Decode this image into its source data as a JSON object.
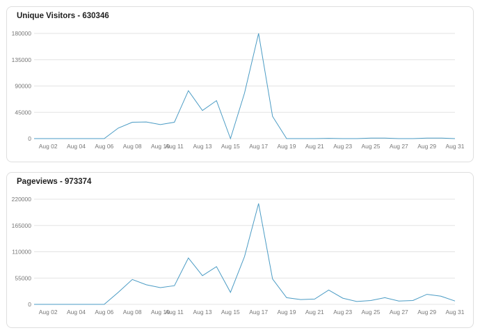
{
  "colors": {
    "line": "#4a9bc4",
    "grid": "#e3e3e3"
  },
  "chart_data": [
    {
      "type": "line",
      "title": "Unique Visitors - 630346",
      "x": [
        "Aug 01",
        "Aug 02",
        "Aug 03",
        "Aug 04",
        "Aug 05",
        "Aug 06",
        "Aug 07",
        "Aug 08",
        "Aug 09",
        "Aug 10",
        "Aug 11",
        "Aug 12",
        "Aug 13",
        "Aug 14",
        "Aug 15",
        "Aug 16",
        "Aug 17",
        "Aug 18",
        "Aug 19",
        "Aug 20",
        "Aug 21",
        "Aug 22",
        "Aug 23",
        "Aug 24",
        "Aug 25",
        "Aug 26",
        "Aug 27",
        "Aug 28",
        "Aug 29",
        "Aug 30",
        "Aug 31"
      ],
      "x_tick_labels": [
        "Aug 02",
        "Aug 04",
        "Aug 06",
        "Aug 08",
        "Aug 10",
        "Aug 11",
        "Aug 13",
        "Aug 15",
        "Aug 17",
        "Aug 19",
        "Aug 21",
        "Aug 23",
        "Aug 25",
        "Aug 27",
        "Aug 29",
        "Aug 31"
      ],
      "y_ticks": [
        0,
        45000,
        90000,
        135000,
        180000
      ],
      "ylim": [
        0,
        180000
      ],
      "grid": true,
      "series": [
        {
          "values": [
            0,
            0,
            0,
            0,
            0,
            0,
            18000,
            28000,
            28500,
            24000,
            28000,
            82000,
            48000,
            65000,
            0,
            78000,
            180000,
            38000,
            0,
            0,
            0,
            500,
            0,
            0,
            1000,
            1000,
            0,
            0,
            1000,
            1000,
            0
          ]
        }
      ]
    },
    {
      "type": "line",
      "title": "Pageviews - 973374",
      "x": [
        "Aug 01",
        "Aug 02",
        "Aug 03",
        "Aug 04",
        "Aug 05",
        "Aug 06",
        "Aug 07",
        "Aug 08",
        "Aug 09",
        "Aug 10",
        "Aug 11",
        "Aug 12",
        "Aug 13",
        "Aug 14",
        "Aug 15",
        "Aug 16",
        "Aug 17",
        "Aug 18",
        "Aug 19",
        "Aug 20",
        "Aug 21",
        "Aug 22",
        "Aug 23",
        "Aug 24",
        "Aug 25",
        "Aug 26",
        "Aug 27",
        "Aug 28",
        "Aug 29",
        "Aug 30",
        "Aug 31"
      ],
      "x_tick_labels": [
        "Aug 02",
        "Aug 04",
        "Aug 06",
        "Aug 08",
        "Aug 10",
        "Aug 11",
        "Aug 13",
        "Aug 15",
        "Aug 17",
        "Aug 19",
        "Aug 21",
        "Aug 23",
        "Aug 25",
        "Aug 27",
        "Aug 29",
        "Aug 31"
      ],
      "y_ticks": [
        0,
        55000,
        110000,
        165000,
        220000
      ],
      "ylim": [
        0,
        220000
      ],
      "grid": true,
      "series": [
        {
          "values": [
            0,
            0,
            0,
            0,
            0,
            0,
            25000,
            52000,
            41000,
            35000,
            39000,
            97000,
            60000,
            79000,
            25000,
            100000,
            211000,
            53000,
            14000,
            10000,
            11000,
            30000,
            13000,
            6000,
            8000,
            14000,
            7000,
            8000,
            21000,
            17000,
            7000
          ]
        }
      ]
    }
  ]
}
